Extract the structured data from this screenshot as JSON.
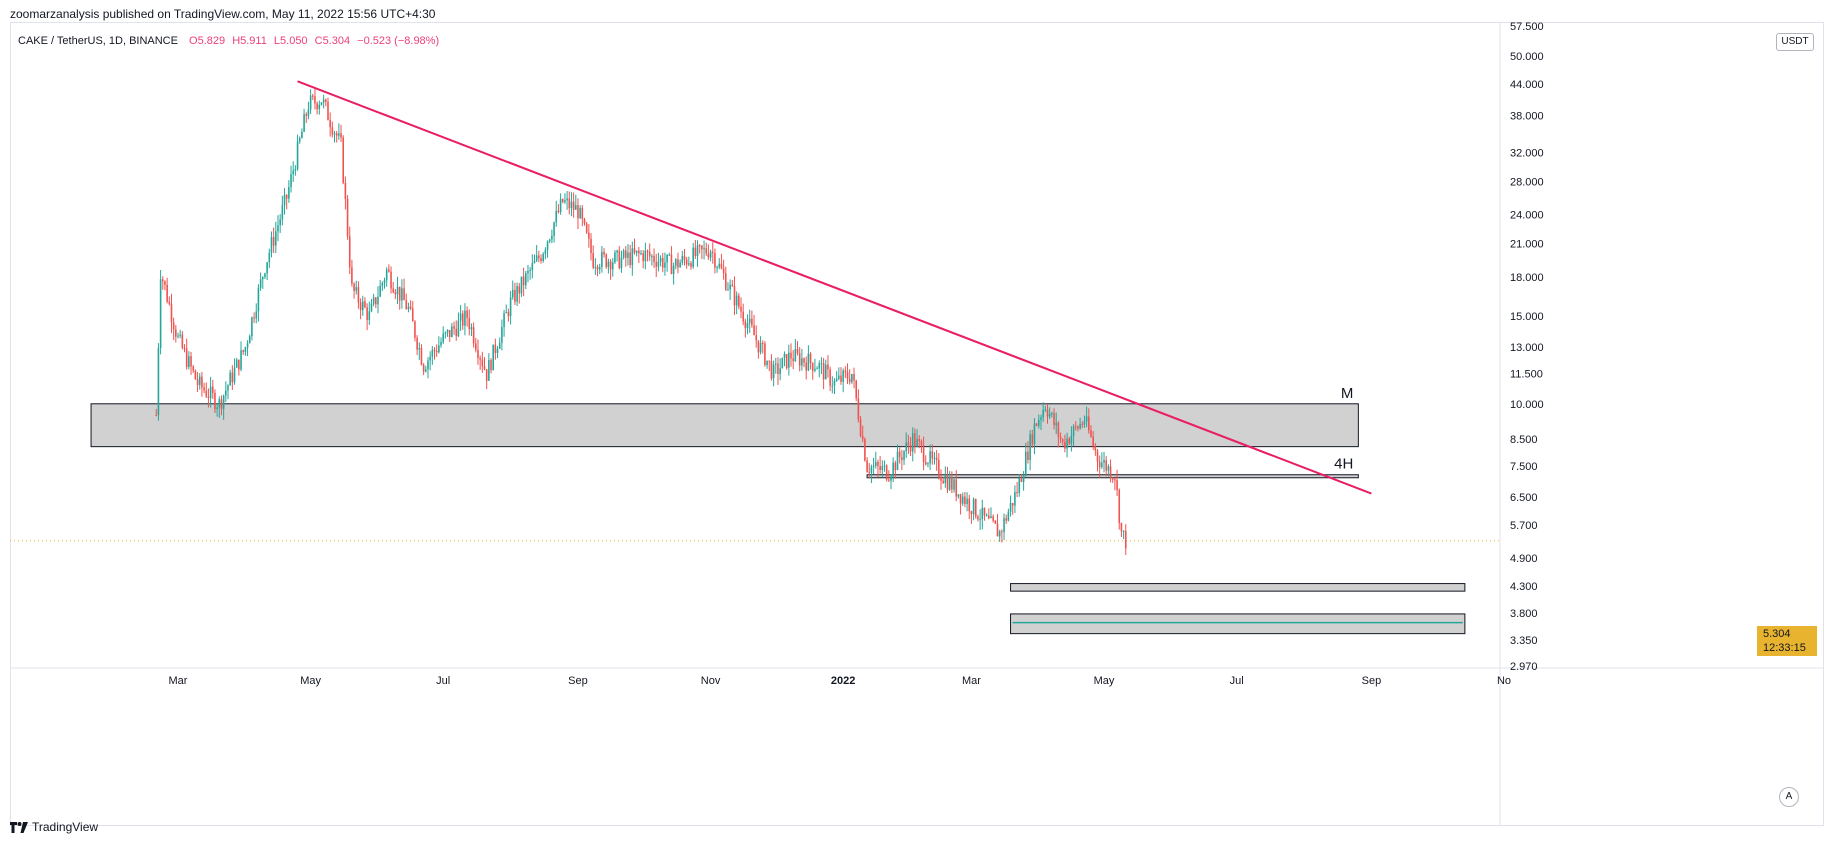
{
  "header": {
    "published": "zoomarzanalysis published on TradingView.com, May 11, 2022 15:56 UTC+4:30",
    "symbol": "CAKE / TetherUS, 1D, BINANCE",
    "open": "O5.829",
    "high": "H5.911",
    "low": "L5.050",
    "close": "C5.304",
    "change": "−0.523 (−8.98%)"
  },
  "currency": "USDT",
  "last_price": {
    "value": "5.304",
    "countdown": "12:33:15"
  },
  "auto_label": "A",
  "footer": {
    "brand": "TradingView"
  },
  "colors": {
    "up": "#26a69a",
    "down": "#ef5350",
    "trendline": "#e91e63",
    "zone_fill": "#d1d1d1",
    "last_price": "#e8b32e",
    "target_line": "#26a69a"
  },
  "chart_data": {
    "type": "candlestick",
    "scale": "log",
    "ylim": [
      2.97,
      57.5
    ],
    "y_ticks": [
      "57.500",
      "50.000",
      "44.000",
      "38.000",
      "32.000",
      "28.000",
      "24.000",
      "21.000",
      "18.000",
      "15.000",
      "13.000",
      "11.500",
      "10.000",
      "8.500",
      "7.500",
      "6.500",
      "5.700",
      "4.900",
      "4.300",
      "3.800",
      "3.350",
      "2.970"
    ],
    "x_labels": [
      "Mar",
      "May",
      "Jul",
      "Sep",
      "Nov",
      "2022",
      "Mar",
      "May",
      "Jul",
      "Sep",
      "No"
    ],
    "price_path": [
      {
        "t": "2021-02-19",
        "p": 9.5
      },
      {
        "t": "2021-02-21",
        "p": 18.5
      },
      {
        "t": "2021-03-01",
        "p": 13.5
      },
      {
        "t": "2021-03-10",
        "p": 11.0
      },
      {
        "t": "2021-03-20",
        "p": 10.0
      },
      {
        "t": "2021-04-01",
        "p": 13.0
      },
      {
        "t": "2021-04-10",
        "p": 19.0
      },
      {
        "t": "2021-04-20",
        "p": 26.0
      },
      {
        "t": "2021-04-30",
        "p": 40.0
      },
      {
        "t": "2021-05-06",
        "p": 41.0
      },
      {
        "t": "2021-05-15",
        "p": 33.0
      },
      {
        "t": "2021-05-20",
        "p": 17.0
      },
      {
        "t": "2021-05-28",
        "p": 15.0
      },
      {
        "t": "2021-06-05",
        "p": 18.5
      },
      {
        "t": "2021-06-15",
        "p": 15.5
      },
      {
        "t": "2021-06-22",
        "p": 12.0
      },
      {
        "t": "2021-07-01",
        "p": 13.5
      },
      {
        "t": "2021-07-12",
        "p": 15.0
      },
      {
        "t": "2021-07-21",
        "p": 11.5
      },
      {
        "t": "2021-08-01",
        "p": 16.0
      },
      {
        "t": "2021-08-15",
        "p": 20.0
      },
      {
        "t": "2021-08-25",
        "p": 25.5
      },
      {
        "t": "2021-09-01",
        "p": 24.5
      },
      {
        "t": "2021-09-08",
        "p": 19.5
      },
      {
        "t": "2021-09-20",
        "p": 19.5
      },
      {
        "t": "2021-10-01",
        "p": 20.0
      },
      {
        "t": "2021-10-15",
        "p": 19.0
      },
      {
        "t": "2021-11-01",
        "p": 20.5
      },
      {
        "t": "2021-11-10",
        "p": 17.0
      },
      {
        "t": "2021-11-20",
        "p": 14.0
      },
      {
        "t": "2021-11-30",
        "p": 11.5
      },
      {
        "t": "2021-12-08",
        "p": 12.5
      },
      {
        "t": "2021-12-20",
        "p": 12.0
      },
      {
        "t": "2021-12-28",
        "p": 11.0
      },
      {
        "t": "2022-01-05",
        "p": 11.5
      },
      {
        "t": "2022-01-12",
        "p": 7.5
      },
      {
        "t": "2022-01-22",
        "p": 7.3
      },
      {
        "t": "2022-02-02",
        "p": 8.5
      },
      {
        "t": "2022-02-12",
        "p": 7.5
      },
      {
        "t": "2022-02-25",
        "p": 6.5
      },
      {
        "t": "2022-03-08",
        "p": 5.8
      },
      {
        "t": "2022-03-14",
        "p": 5.5
      },
      {
        "t": "2022-03-22",
        "p": 6.7
      },
      {
        "t": "2022-03-30",
        "p": 9.0
      },
      {
        "t": "2022-04-04",
        "p": 10.0
      },
      {
        "t": "2022-04-12",
        "p": 8.3
      },
      {
        "t": "2022-04-22",
        "p": 9.3
      },
      {
        "t": "2022-04-28",
        "p": 7.8
      },
      {
        "t": "2022-05-06",
        "p": 7.2
      },
      {
        "t": "2022-05-09",
        "p": 5.5
      },
      {
        "t": "2022-05-11",
        "p": 5.304
      }
    ],
    "trendline": {
      "from": {
        "t": "2021-04-25",
        "p": 44.5
      },
      "to": {
        "t": "2022-09-01",
        "p": 6.6
      }
    },
    "zones": [
      {
        "label": "M",
        "from_t": "2021-01-20",
        "to_t": "2022-08-26",
        "low": 8.2,
        "high": 10.0
      },
      {
        "label": "4H",
        "from_t": "2022-01-12",
        "to_t": "2022-08-26",
        "low": 7.1,
        "high": 7.2
      },
      {
        "label": "",
        "from_t": "2022-03-19",
        "to_t": "2022-10-14",
        "low": 4.2,
        "high": 4.35
      },
      {
        "label": "",
        "from_t": "2022-03-19",
        "to_t": "2022-10-14",
        "low": 3.45,
        "high": 3.78,
        "mid_line": 3.63
      }
    ],
    "last_price": 5.304
  }
}
